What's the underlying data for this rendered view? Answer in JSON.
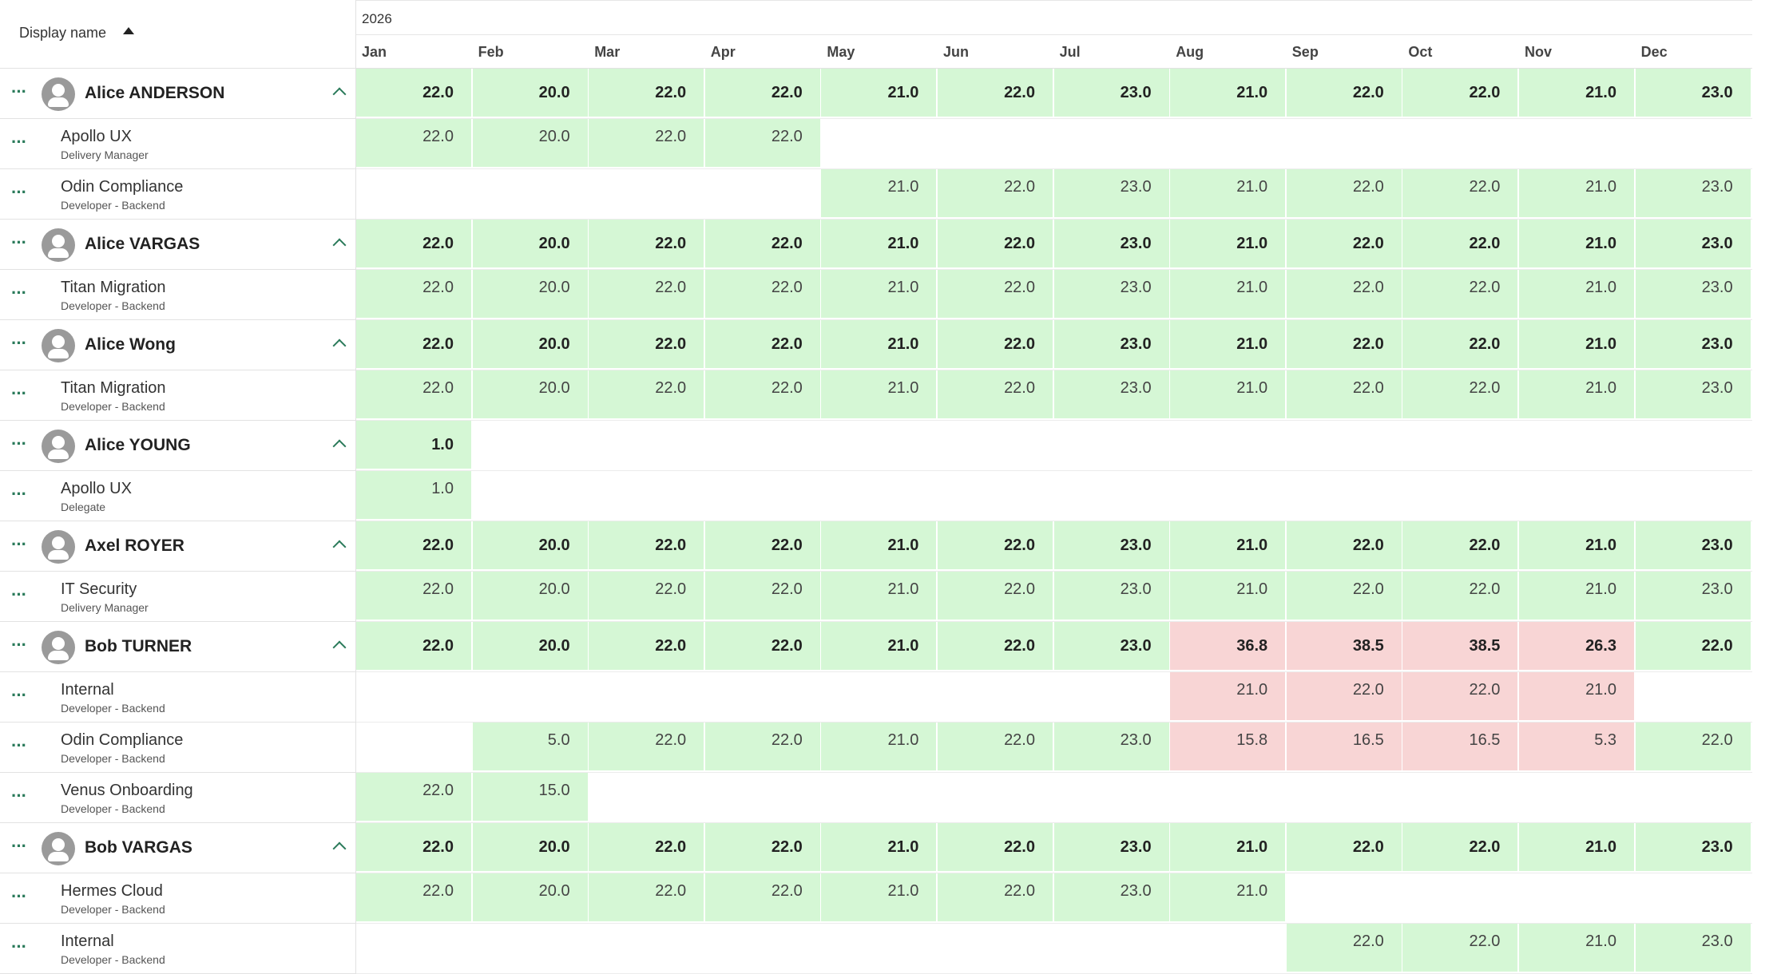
{
  "header": {
    "display_name_label": "Display name",
    "year": "2026",
    "months": [
      "Jan",
      "Feb",
      "Mar",
      "Apr",
      "May",
      "Jun",
      "Jul",
      "Aug",
      "Sep",
      "Oct",
      "Nov",
      "Dec"
    ]
  },
  "colors": {
    "ok": "#d5f7d5",
    "over": "#f8d5d5",
    "accent": "#2a7a5a"
  },
  "icons": {
    "row_menu": "more-horizontal-icon",
    "avatar": "user-avatar-icon",
    "collapse": "chevron-up-icon",
    "sort": "sort-ascending-icon"
  },
  "rows": [
    {
      "type": "person",
      "name": "Alice ANDERSON",
      "cells": [
        {
          "v": "22.0",
          "s": "ok"
        },
        {
          "v": "20.0",
          "s": "ok"
        },
        {
          "v": "22.0",
          "s": "ok"
        },
        {
          "v": "22.0",
          "s": "ok"
        },
        {
          "v": "21.0",
          "s": "ok"
        },
        {
          "v": "22.0",
          "s": "ok"
        },
        {
          "v": "23.0",
          "s": "ok"
        },
        {
          "v": "21.0",
          "s": "ok"
        },
        {
          "v": "22.0",
          "s": "ok"
        },
        {
          "v": "22.0",
          "s": "ok"
        },
        {
          "v": "21.0",
          "s": "ok"
        },
        {
          "v": "23.0",
          "s": "ok"
        }
      ]
    },
    {
      "type": "project",
      "name": "Apollo UX",
      "role": "Delivery Manager",
      "cells": [
        {
          "v": "22.0",
          "s": "ok"
        },
        {
          "v": "20.0",
          "s": "ok"
        },
        {
          "v": "22.0",
          "s": "ok"
        },
        {
          "v": "22.0",
          "s": "ok"
        },
        null,
        null,
        null,
        null,
        null,
        null,
        null,
        null
      ]
    },
    {
      "type": "project",
      "name": "Odin Compliance",
      "role": "Developer - Backend",
      "cells": [
        null,
        null,
        null,
        null,
        {
          "v": "21.0",
          "s": "ok"
        },
        {
          "v": "22.0",
          "s": "ok"
        },
        {
          "v": "23.0",
          "s": "ok"
        },
        {
          "v": "21.0",
          "s": "ok"
        },
        {
          "v": "22.0",
          "s": "ok"
        },
        {
          "v": "22.0",
          "s": "ok"
        },
        {
          "v": "21.0",
          "s": "ok"
        },
        {
          "v": "23.0",
          "s": "ok"
        }
      ]
    },
    {
      "type": "person",
      "name": "Alice VARGAS",
      "cells": [
        {
          "v": "22.0",
          "s": "ok"
        },
        {
          "v": "20.0",
          "s": "ok"
        },
        {
          "v": "22.0",
          "s": "ok"
        },
        {
          "v": "22.0",
          "s": "ok"
        },
        {
          "v": "21.0",
          "s": "ok"
        },
        {
          "v": "22.0",
          "s": "ok"
        },
        {
          "v": "23.0",
          "s": "ok"
        },
        {
          "v": "21.0",
          "s": "ok"
        },
        {
          "v": "22.0",
          "s": "ok"
        },
        {
          "v": "22.0",
          "s": "ok"
        },
        {
          "v": "21.0",
          "s": "ok"
        },
        {
          "v": "23.0",
          "s": "ok"
        }
      ]
    },
    {
      "type": "project",
      "name": "Titan Migration",
      "role": "Developer - Backend",
      "cells": [
        {
          "v": "22.0",
          "s": "ok"
        },
        {
          "v": "20.0",
          "s": "ok"
        },
        {
          "v": "22.0",
          "s": "ok"
        },
        {
          "v": "22.0",
          "s": "ok"
        },
        {
          "v": "21.0",
          "s": "ok"
        },
        {
          "v": "22.0",
          "s": "ok"
        },
        {
          "v": "23.0",
          "s": "ok"
        },
        {
          "v": "21.0",
          "s": "ok"
        },
        {
          "v": "22.0",
          "s": "ok"
        },
        {
          "v": "22.0",
          "s": "ok"
        },
        {
          "v": "21.0",
          "s": "ok"
        },
        {
          "v": "23.0",
          "s": "ok"
        }
      ]
    },
    {
      "type": "person",
      "name": "Alice Wong",
      "cells": [
        {
          "v": "22.0",
          "s": "ok"
        },
        {
          "v": "20.0",
          "s": "ok"
        },
        {
          "v": "22.0",
          "s": "ok"
        },
        {
          "v": "22.0",
          "s": "ok"
        },
        {
          "v": "21.0",
          "s": "ok"
        },
        {
          "v": "22.0",
          "s": "ok"
        },
        {
          "v": "23.0",
          "s": "ok"
        },
        {
          "v": "21.0",
          "s": "ok"
        },
        {
          "v": "22.0",
          "s": "ok"
        },
        {
          "v": "22.0",
          "s": "ok"
        },
        {
          "v": "21.0",
          "s": "ok"
        },
        {
          "v": "23.0",
          "s": "ok"
        }
      ]
    },
    {
      "type": "project",
      "name": "Titan Migration",
      "role": "Developer - Backend",
      "cells": [
        {
          "v": "22.0",
          "s": "ok"
        },
        {
          "v": "20.0",
          "s": "ok"
        },
        {
          "v": "22.0",
          "s": "ok"
        },
        {
          "v": "22.0",
          "s": "ok"
        },
        {
          "v": "21.0",
          "s": "ok"
        },
        {
          "v": "22.0",
          "s": "ok"
        },
        {
          "v": "23.0",
          "s": "ok"
        },
        {
          "v": "21.0",
          "s": "ok"
        },
        {
          "v": "22.0",
          "s": "ok"
        },
        {
          "v": "22.0",
          "s": "ok"
        },
        {
          "v": "21.0",
          "s": "ok"
        },
        {
          "v": "23.0",
          "s": "ok"
        }
      ]
    },
    {
      "type": "person",
      "name": "Alice YOUNG",
      "cells": [
        {
          "v": "1.0",
          "s": "ok"
        },
        null,
        null,
        null,
        null,
        null,
        null,
        null,
        null,
        null,
        null,
        null
      ]
    },
    {
      "type": "project",
      "name": "Apollo UX",
      "role": "Delegate",
      "cells": [
        {
          "v": "1.0",
          "s": "ok"
        },
        null,
        null,
        null,
        null,
        null,
        null,
        null,
        null,
        null,
        null,
        null
      ]
    },
    {
      "type": "person",
      "name": "Axel ROYER",
      "cells": [
        {
          "v": "22.0",
          "s": "ok"
        },
        {
          "v": "20.0",
          "s": "ok"
        },
        {
          "v": "22.0",
          "s": "ok"
        },
        {
          "v": "22.0",
          "s": "ok"
        },
        {
          "v": "21.0",
          "s": "ok"
        },
        {
          "v": "22.0",
          "s": "ok"
        },
        {
          "v": "23.0",
          "s": "ok"
        },
        {
          "v": "21.0",
          "s": "ok"
        },
        {
          "v": "22.0",
          "s": "ok"
        },
        {
          "v": "22.0",
          "s": "ok"
        },
        {
          "v": "21.0",
          "s": "ok"
        },
        {
          "v": "23.0",
          "s": "ok"
        }
      ]
    },
    {
      "type": "project",
      "name": "IT Security",
      "role": "Delivery Manager",
      "cells": [
        {
          "v": "22.0",
          "s": "ok"
        },
        {
          "v": "20.0",
          "s": "ok"
        },
        {
          "v": "22.0",
          "s": "ok"
        },
        {
          "v": "22.0",
          "s": "ok"
        },
        {
          "v": "21.0",
          "s": "ok"
        },
        {
          "v": "22.0",
          "s": "ok"
        },
        {
          "v": "23.0",
          "s": "ok"
        },
        {
          "v": "21.0",
          "s": "ok"
        },
        {
          "v": "22.0",
          "s": "ok"
        },
        {
          "v": "22.0",
          "s": "ok"
        },
        {
          "v": "21.0",
          "s": "ok"
        },
        {
          "v": "23.0",
          "s": "ok"
        }
      ]
    },
    {
      "type": "person",
      "name": "Bob TURNER",
      "cells": [
        {
          "v": "22.0",
          "s": "ok"
        },
        {
          "v": "20.0",
          "s": "ok"
        },
        {
          "v": "22.0",
          "s": "ok"
        },
        {
          "v": "22.0",
          "s": "ok"
        },
        {
          "v": "21.0",
          "s": "ok"
        },
        {
          "v": "22.0",
          "s": "ok"
        },
        {
          "v": "23.0",
          "s": "ok"
        },
        {
          "v": "36.8",
          "s": "over"
        },
        {
          "v": "38.5",
          "s": "over"
        },
        {
          "v": "38.5",
          "s": "over"
        },
        {
          "v": "26.3",
          "s": "over"
        },
        {
          "v": "22.0",
          "s": "ok"
        }
      ]
    },
    {
      "type": "project",
      "name": "Internal",
      "role": "Developer - Backend",
      "cells": [
        null,
        null,
        null,
        null,
        null,
        null,
        null,
        {
          "v": "21.0",
          "s": "over"
        },
        {
          "v": "22.0",
          "s": "over"
        },
        {
          "v": "22.0",
          "s": "over"
        },
        {
          "v": "21.0",
          "s": "over"
        },
        null
      ]
    },
    {
      "type": "project",
      "name": "Odin Compliance",
      "role": "Developer - Backend",
      "cells": [
        null,
        {
          "v": "5.0",
          "s": "ok"
        },
        {
          "v": "22.0",
          "s": "ok"
        },
        {
          "v": "22.0",
          "s": "ok"
        },
        {
          "v": "21.0",
          "s": "ok"
        },
        {
          "v": "22.0",
          "s": "ok"
        },
        {
          "v": "23.0",
          "s": "ok"
        },
        {
          "v": "15.8",
          "s": "over"
        },
        {
          "v": "16.5",
          "s": "over"
        },
        {
          "v": "16.5",
          "s": "over"
        },
        {
          "v": "5.3",
          "s": "over"
        },
        {
          "v": "22.0",
          "s": "ok"
        }
      ]
    },
    {
      "type": "project",
      "name": "Venus Onboarding",
      "role": "Developer - Backend",
      "cells": [
        {
          "v": "22.0",
          "s": "ok"
        },
        {
          "v": "15.0",
          "s": "ok"
        },
        null,
        null,
        null,
        null,
        null,
        null,
        null,
        null,
        null,
        null
      ]
    },
    {
      "type": "person",
      "name": "Bob VARGAS",
      "cells": [
        {
          "v": "22.0",
          "s": "ok"
        },
        {
          "v": "20.0",
          "s": "ok"
        },
        {
          "v": "22.0",
          "s": "ok"
        },
        {
          "v": "22.0",
          "s": "ok"
        },
        {
          "v": "21.0",
          "s": "ok"
        },
        {
          "v": "22.0",
          "s": "ok"
        },
        {
          "v": "23.0",
          "s": "ok"
        },
        {
          "v": "21.0",
          "s": "ok"
        },
        {
          "v": "22.0",
          "s": "ok"
        },
        {
          "v": "22.0",
          "s": "ok"
        },
        {
          "v": "21.0",
          "s": "ok"
        },
        {
          "v": "23.0",
          "s": "ok"
        }
      ]
    },
    {
      "type": "project",
      "name": "Hermes Cloud",
      "role": "Developer - Backend",
      "cells": [
        {
          "v": "22.0",
          "s": "ok"
        },
        {
          "v": "20.0",
          "s": "ok"
        },
        {
          "v": "22.0",
          "s": "ok"
        },
        {
          "v": "22.0",
          "s": "ok"
        },
        {
          "v": "21.0",
          "s": "ok"
        },
        {
          "v": "22.0",
          "s": "ok"
        },
        {
          "v": "23.0",
          "s": "ok"
        },
        {
          "v": "21.0",
          "s": "ok"
        },
        null,
        null,
        null,
        null
      ]
    },
    {
      "type": "project",
      "name": "Internal",
      "role": "Developer - Backend",
      "cells": [
        null,
        null,
        null,
        null,
        null,
        null,
        null,
        null,
        {
          "v": "22.0",
          "s": "ok"
        },
        {
          "v": "22.0",
          "s": "ok"
        },
        {
          "v": "21.0",
          "s": "ok"
        },
        {
          "v": "23.0",
          "s": "ok"
        }
      ]
    }
  ]
}
